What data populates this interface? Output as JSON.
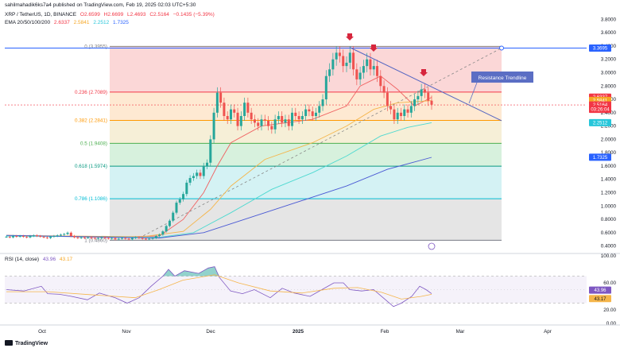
{
  "header": {
    "watermark": "sahilmahadik6ks7a4 published on TradingView.com, Feb 19, 2025 02:03 UTC+5:30",
    "symbol_line": "XRP / TetherUS, 1D, BINANCE",
    "ohlc": {
      "o": "O2.6599",
      "h": "H2.6699",
      "l": "L2.4693",
      "c": "C2.5164",
      "chg": "−0.1435 (−5.39%)"
    },
    "ema_label": "EMA 20/50/100/200",
    "ema_values": [
      "2.6337",
      "2.5841",
      "2.2512",
      "1.7325"
    ],
    "rsi_label": "RSI (14, close)",
    "rsi_values": [
      "43.96",
      "43.17"
    ]
  },
  "footer": {
    "brand": "TradingView"
  },
  "annotations": {
    "trendline_label": "Resistance Trendline"
  },
  "colors": {
    "up": "#26a69a",
    "down": "#ef5350",
    "ema20": "#f06262",
    "ema50": "#f5b54a",
    "ema100": "#4dd9d0",
    "ema200": "#4a59d4",
    "trendline": "#5566c2",
    "rsi": "#7e57c2",
    "rsi_ma": "#f5b54a",
    "arrow": "#d7263d"
  },
  "chart_data": [
    {
      "type": "candlestick",
      "title": "XRP / TetherUS, 1D, BINANCE",
      "x_labels": [
        "Oct",
        "Nov",
        "Dec",
        "2025",
        "Feb",
        "Mar",
        "Apr"
      ],
      "y_ticks": [
        "3.8000",
        "3.6000",
        "3.4000",
        "3.2000",
        "3.0000",
        "2.8000",
        "2.6000",
        "2.4000",
        "2.2000",
        "2.0000",
        "1.8000",
        "1.6000",
        "1.4000",
        "1.2000",
        "1.0000",
        "0.8000",
        "0.6000",
        "0.4000"
      ],
      "ylim": [
        0.3,
        3.9
      ],
      "fibonacci": [
        {
          "label": "0 (3.3955)",
          "value": 3.3955,
          "color": "#808080"
        },
        {
          "label": "0.236 (2.7089)",
          "value": 2.7089,
          "color": "#f23645"
        },
        {
          "label": "0.382 (2.2841)",
          "value": 2.2841,
          "color": "#ff9800"
        },
        {
          "label": "0.5 (1.9408)",
          "value": 1.9408,
          "color": "#4caf50"
        },
        {
          "label": "0.618 (1.5974)",
          "value": 1.5974,
          "color": "#089981"
        },
        {
          "label": "0.786 (1.1086)",
          "value": 1.1086,
          "color": "#00bcd4"
        },
        {
          "label": "1 (0.4860)",
          "value": 0.486,
          "color": "#787b86"
        }
      ],
      "price_tags": [
        {
          "text": "3.3695",
          "value": 3.3695,
          "color": "#2962ff"
        },
        {
          "text": "2.6337",
          "value": 2.6337,
          "color": "#f23645"
        },
        {
          "text": "2.5841",
          "value": 2.5841,
          "color": "#f5a623"
        },
        {
          "text": "2.5164",
          "value": 2.5164,
          "color": "#f23645"
        },
        {
          "text": "03:26:04",
          "value": 2.45,
          "color": "#f23645"
        },
        {
          "text": "2.2512",
          "value": 2.2512,
          "color": "#26c6da"
        },
        {
          "text": "1.7325",
          "value": 1.7325,
          "color": "#2962ff"
        }
      ],
      "series_close": [
        0.54,
        0.53,
        0.55,
        0.54,
        0.55,
        0.54,
        0.53,
        0.55,
        0.56,
        0.55,
        0.54,
        0.53,
        0.52,
        0.54,
        0.55,
        0.56,
        0.57,
        0.58,
        0.6,
        0.55,
        0.53,
        0.52,
        0.53,
        0.52,
        0.53,
        0.52,
        0.51,
        0.52,
        0.53,
        0.52,
        0.51,
        0.52,
        0.5,
        0.51,
        0.52,
        0.51,
        0.5,
        0.52,
        0.53,
        0.52,
        0.51,
        0.5,
        0.51,
        0.52,
        0.55,
        0.57,
        0.62,
        0.7,
        0.78,
        0.9,
        1.05,
        1.1,
        1.18,
        1.35,
        1.42,
        1.45,
        1.5,
        1.45,
        1.6,
        1.65,
        2.0,
        2.4,
        2.7,
        2.55,
        2.35,
        2.3,
        2.45,
        2.4,
        2.2,
        2.35,
        2.55,
        2.4,
        2.3,
        2.25,
        2.2,
        2.3,
        2.28,
        2.2,
        2.15,
        2.3,
        2.35,
        2.25,
        2.3,
        2.2,
        2.4,
        2.35,
        2.3,
        2.35,
        2.45,
        2.42,
        2.35,
        2.4,
        2.5,
        2.6,
        2.95,
        3.05,
        3.2,
        3.3,
        3.25,
        3.1,
        3.15,
        3.3,
        3.05,
        2.9,
        3.0,
        3.1,
        3.2,
        3.05,
        3.1,
        2.95,
        2.8,
        2.7,
        2.5,
        2.45,
        2.3,
        2.4,
        2.35,
        2.45,
        2.4,
        2.5,
        2.6,
        2.65,
        2.75,
        2.7,
        2.58,
        2.52
      ],
      "ema": {
        "ema20": 2.6337,
        "ema50": 2.5841,
        "ema100": 2.2512,
        "ema200": 1.7325
      }
    },
    {
      "type": "line",
      "title": "RSI (14, close)",
      "y_ticks": [
        "100.00",
        "60.00",
        "20.00",
        "0.00"
      ],
      "ylim": [
        0,
        100
      ],
      "band": [
        30,
        70
      ],
      "series": [
        {
          "name": "RSI",
          "last": 43.96
        },
        {
          "name": "MA",
          "last": 43.17
        }
      ]
    }
  ]
}
